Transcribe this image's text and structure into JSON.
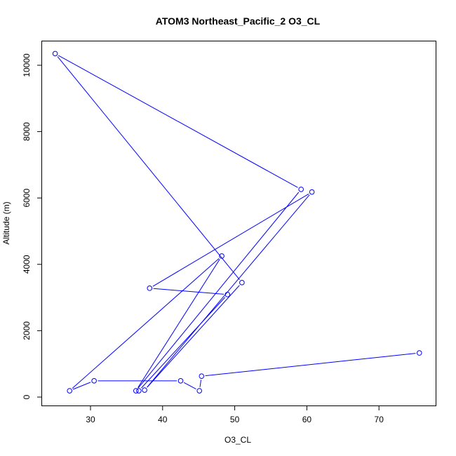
{
  "chart_data": {
    "type": "line",
    "title": "ATOM3 Northeast_Pacific_2 O3_CL",
    "xlabel": "O3_CL",
    "ylabel": "Altitude (m)",
    "xlim": [
      23.4,
      78.2
    ],
    "ylim": [
      -300,
      10700
    ],
    "xticks": [
      30,
      40,
      50,
      60,
      70
    ],
    "yticks": [
      0,
      2000,
      4000,
      6000,
      8000,
      10000
    ],
    "grid": false,
    "color": "#0000ff",
    "markers": "open-circle",
    "x": [
      75.6,
      45.4,
      45.1,
      42.5,
      30.5,
      27.1,
      48.2,
      36.3,
      59.2,
      25.1,
      51.0,
      37.5,
      60.7,
      38.2,
      49.0,
      36.7
    ],
    "y": [
      1330,
      630,
      190,
      490,
      490,
      190,
      4250,
      190,
      6260,
      10350,
      3450,
      210,
      6180,
      3280,
      3090,
      190
    ]
  }
}
